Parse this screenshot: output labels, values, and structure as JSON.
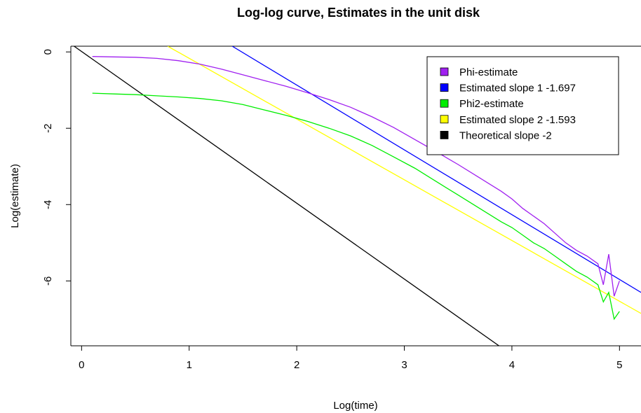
{
  "chart_data": {
    "type": "line",
    "title": "Log-log curve, Estimates in the unit disk",
    "xlabel": "Log(time)",
    "ylabel": "Log(estimate)",
    "xlim": [
      -0.1,
      5.2
    ],
    "ylim": [
      -7.7,
      0.15
    ],
    "x_ticks": [
      "0",
      "1",
      "2",
      "3",
      "4",
      "5"
    ],
    "y_ticks": [
      "0",
      "-2",
      "-4",
      "-6"
    ],
    "legend_position": "top-right",
    "series": [
      {
        "name": "Phi-estimate",
        "color": "#a020f0",
        "x": [
          0.1,
          0.3,
          0.5,
          0.7,
          0.9,
          1.1,
          1.3,
          1.5,
          1.7,
          1.9,
          2.1,
          2.3,
          2.5,
          2.7,
          2.9,
          3.1,
          3.3,
          3.5,
          3.7,
          3.9,
          4.0,
          4.1,
          4.2,
          4.3,
          4.4,
          4.5,
          4.6,
          4.7,
          4.8,
          4.85,
          4.9,
          4.95,
          5.0
        ],
        "y": [
          -0.12,
          -0.13,
          -0.14,
          -0.17,
          -0.23,
          -0.32,
          -0.45,
          -0.6,
          -0.75,
          -0.9,
          -1.07,
          -1.25,
          -1.45,
          -1.7,
          -1.98,
          -2.3,
          -2.62,
          -2.95,
          -3.3,
          -3.65,
          -3.85,
          -4.1,
          -4.3,
          -4.5,
          -4.75,
          -5.0,
          -5.2,
          -5.35,
          -5.55,
          -6.1,
          -5.3,
          -6.4,
          -6.0
        ]
      },
      {
        "name": "Estimated slope 1 -1.697",
        "color": "#0000ff",
        "x": [
          1.4,
          5.2
        ],
        "y": [
          0.15,
          -6.3
        ]
      },
      {
        "name": "Phi2-estimate",
        "color": "#00ee00",
        "x": [
          0.1,
          0.3,
          0.5,
          0.7,
          0.9,
          1.1,
          1.3,
          1.5,
          1.7,
          1.9,
          2.1,
          2.3,
          2.5,
          2.7,
          2.9,
          3.1,
          3.3,
          3.5,
          3.7,
          3.9,
          4.0,
          4.1,
          4.2,
          4.3,
          4.4,
          4.5,
          4.6,
          4.7,
          4.8,
          4.85,
          4.9,
          4.95,
          5.0
        ],
        "y": [
          -1.08,
          -1.1,
          -1.12,
          -1.15,
          -1.18,
          -1.22,
          -1.28,
          -1.38,
          -1.52,
          -1.66,
          -1.82,
          -2.0,
          -2.2,
          -2.45,
          -2.75,
          -3.05,
          -3.4,
          -3.75,
          -4.1,
          -4.45,
          -4.6,
          -4.8,
          -5.0,
          -5.15,
          -5.35,
          -5.55,
          -5.75,
          -5.9,
          -6.1,
          -6.55,
          -6.3,
          -7.0,
          -6.8
        ]
      },
      {
        "name": "Estimated slope 2 -1.593",
        "color": "#ffff00",
        "x": [
          0.8,
          5.2
        ],
        "y": [
          0.15,
          -6.85
        ]
      },
      {
        "name": "Theoretical slope -2",
        "color": "#000000",
        "x": [
          -0.07,
          3.88
        ],
        "y": [
          0.15,
          -7.7
        ]
      }
    ]
  }
}
